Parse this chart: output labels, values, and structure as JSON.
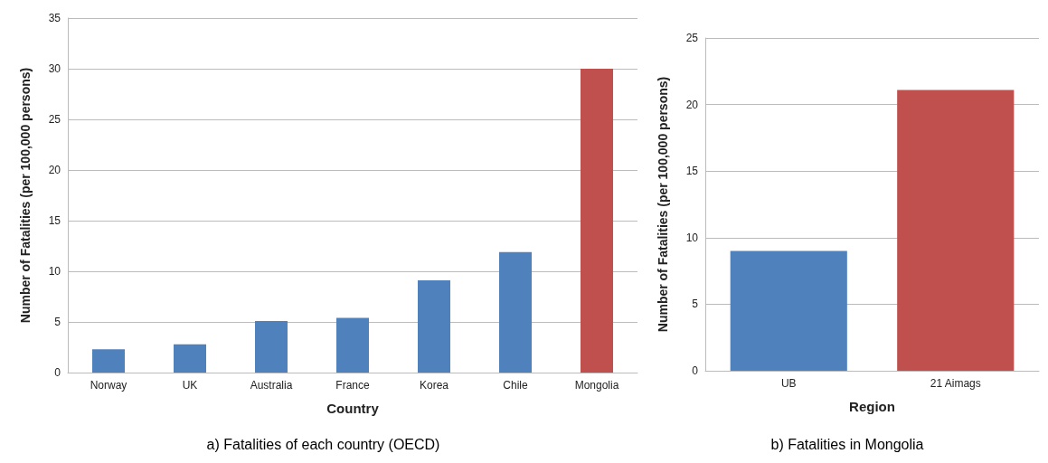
{
  "chart_data": [
    {
      "type": "bar",
      "title": "a) Fatalities of each country (OECD)",
      "xlabel": "Country",
      "ylabel": "Number of Fatalities (per 100,000 persons)",
      "categories": [
        "Norway",
        "UK",
        "Australia",
        "France",
        "Korea",
        "Chile",
        "Mongolia"
      ],
      "values": [
        2.3,
        2.8,
        5.1,
        5.4,
        9.1,
        11.9,
        30.0
      ],
      "colors": [
        "#4f81bd",
        "#4f81bd",
        "#4f81bd",
        "#4f81bd",
        "#4f81bd",
        "#4f81bd",
        "#c0504d"
      ],
      "ylim": [
        0,
        35
      ],
      "yticks": [
        0,
        5,
        10,
        15,
        20,
        25,
        30,
        35
      ],
      "grid": "y"
    },
    {
      "type": "bar",
      "title": "b) Fatalities in Mongolia",
      "xlabel": "Region",
      "ylabel": "Number of Fatalities (per 100,000 persons)",
      "categories": [
        "UB",
        "21 Aimags"
      ],
      "values": [
        9.0,
        21.1
      ],
      "colors": [
        "#4f81bd",
        "#c0504d"
      ],
      "ylim": [
        0,
        25
      ],
      "yticks": [
        0,
        5,
        10,
        15,
        20,
        25
      ],
      "grid": "y"
    }
  ]
}
